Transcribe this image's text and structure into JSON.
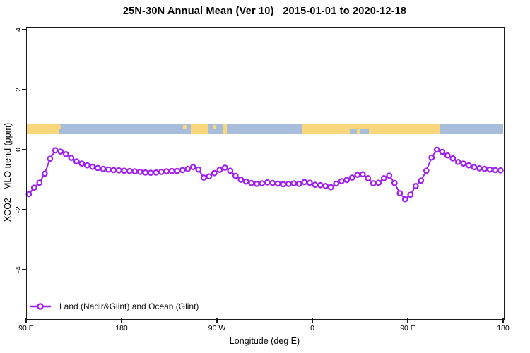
{
  "colors": {
    "series": "#A020F0",
    "land": "#FAD67D",
    "ocean": "#A8BCDC",
    "axis": "#1a1a1a",
    "text": "#000000"
  },
  "chart_data": {
    "type": "line",
    "title": "25N-30N Annual Mean (Ver 10)   2015-01-01 to 2020-12-18",
    "xlabel": "Longitude (deg E)",
    "ylabel": "XCO2 - MLO trend (ppm)",
    "grid": false,
    "legend_position": "bottom-left",
    "ylim": [
      -5.6,
      4.1
    ],
    "y_ticks": [
      4,
      2,
      0,
      -2,
      -4
    ],
    "x_tick_lons": [
      90,
      180,
      270,
      360,
      450,
      540
    ],
    "x_tick_labels": [
      "90 E",
      "180",
      "90 W",
      "0",
      "90 E",
      "180"
    ],
    "x": [
      92.5,
      97.5,
      102.5,
      107.5,
      112.5,
      117.5,
      122.5,
      127.5,
      132.5,
      137.5,
      142.5,
      147.5,
      152.5,
      157.5,
      162.5,
      167.5,
      172.5,
      177.5,
      182.5,
      187.5,
      192.5,
      197.5,
      202.5,
      207.5,
      212.5,
      217.5,
      222.5,
      227.5,
      232.5,
      237.5,
      242.5,
      247.5,
      252.5,
      257.5,
      262.5,
      267.5,
      272.5,
      277.5,
      282.5,
      287.5,
      292.5,
      297.5,
      302.5,
      307.5,
      312.5,
      317.5,
      322.5,
      327.5,
      332.5,
      337.5,
      342.5,
      347.5,
      352.5,
      357.5,
      362.5,
      367.5,
      372.5,
      377.5,
      382.5,
      387.5,
      392.5,
      397.5,
      402.5,
      407.5,
      412.5,
      417.5,
      422.5,
      427.5,
      432.5,
      437.5,
      442.5,
      447.5,
      452.5,
      457.5,
      462.5,
      467.5,
      472.5,
      477.5,
      482.5,
      487.5,
      492.5,
      497.5,
      502.5,
      507.5,
      512.5,
      517.5,
      522.5,
      527.5,
      532.5,
      537.5
    ],
    "series": [
      {
        "name": "Land (Nadir&Glint) and Ocean (Glint)",
        "marker": "open-circle",
        "values": [
          -1.48,
          -1.26,
          -1.1,
          -0.8,
          -0.3,
          -0.02,
          -0.06,
          -0.15,
          -0.27,
          -0.39,
          -0.46,
          -0.52,
          -0.57,
          -0.61,
          -0.64,
          -0.66,
          -0.68,
          -0.69,
          -0.7,
          -0.71,
          -0.72,
          -0.74,
          -0.76,
          -0.77,
          -0.76,
          -0.74,
          -0.72,
          -0.71,
          -0.71,
          -0.68,
          -0.64,
          -0.58,
          -0.66,
          -0.93,
          -0.89,
          -0.78,
          -0.67,
          -0.6,
          -0.7,
          -0.87,
          -1.0,
          -1.06,
          -1.11,
          -1.14,
          -1.12,
          -1.09,
          -1.11,
          -1.13,
          -1.15,
          -1.14,
          -1.12,
          -1.14,
          -1.08,
          -1.1,
          -1.17,
          -1.18,
          -1.21,
          -1.25,
          -1.13,
          -1.05,
          -1.01,
          -0.93,
          -0.84,
          -0.82,
          -0.95,
          -1.12,
          -1.1,
          -0.95,
          -0.86,
          -1.11,
          -1.45,
          -1.65,
          -1.5,
          -1.21,
          -1.03,
          -0.7,
          -0.26,
          0.0,
          -0.07,
          -0.19,
          -0.29,
          -0.41,
          -0.46,
          -0.52,
          -0.58,
          -0.62,
          -0.64,
          -0.66,
          -0.68,
          -0.69
        ]
      }
    ],
    "map_strip": {
      "description": "land-ocean band for 25N-30N",
      "y_top_value": 0.85,
      "y_bottom_value": 0.52,
      "segments": [
        {
          "from": 90,
          "to": 121,
          "surface": "land"
        },
        {
          "from": 121,
          "to": 245,
          "surface": "ocean"
        },
        {
          "from": 245,
          "to": 261,
          "surface": "land"
        },
        {
          "from": 261,
          "to": 275,
          "surface": "ocean"
        },
        {
          "from": 275,
          "to": 279.5,
          "surface": "land"
        },
        {
          "from": 279.5,
          "to": 350,
          "surface": "ocean"
        },
        {
          "from": 350,
          "to": 480,
          "surface": "land"
        },
        {
          "from": 480,
          "to": 540,
          "surface": "ocean"
        }
      ],
      "ocean_notches": [
        {
          "from": 395,
          "to": 402
        },
        {
          "from": 405,
          "to": 413
        }
      ],
      "land_specks": [
        {
          "from": 121,
          "to": 123.5
        },
        {
          "from": 238,
          "to": 242
        },
        {
          "from": 266,
          "to": 269
        }
      ]
    }
  }
}
